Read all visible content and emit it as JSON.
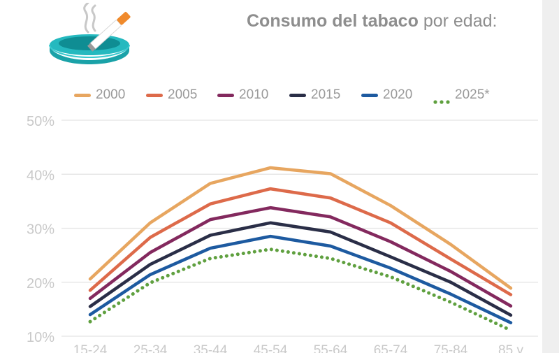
{
  "title": {
    "bold": "Consumo del tabaco",
    "light": "por edad:"
  },
  "icon": "ashtray-cigarette-icon",
  "chart_data": {
    "type": "line",
    "categories": [
      "15-24",
      "25-34",
      "35-44",
      "45-54",
      "55-64",
      "65-74",
      "75-84",
      "85 y"
    ],
    "ylim": [
      10,
      50
    ],
    "yticks": [
      "10%",
      "20%",
      "30%",
      "40%",
      "50%"
    ],
    "grid": true,
    "legend": "top",
    "series": [
      {
        "name": "2000",
        "color": "#e7a660",
        "dash": false,
        "values": [
          20.6,
          31.0,
          38.3,
          41.2,
          40.1,
          34.2,
          27.0,
          18.9
        ]
      },
      {
        "name": "2005",
        "color": "#dd6a4a",
        "dash": false,
        "values": [
          18.5,
          28.3,
          34.5,
          37.3,
          35.6,
          31.0,
          24.3,
          17.7
        ]
      },
      {
        "name": "2010",
        "color": "#83295e",
        "dash": false,
        "values": [
          17.0,
          25.5,
          31.6,
          33.8,
          32.1,
          27.5,
          22.0,
          15.6
        ]
      },
      {
        "name": "2015",
        "color": "#2a2e47",
        "dash": false,
        "values": [
          15.5,
          23.3,
          28.7,
          31.0,
          29.3,
          24.7,
          20.0,
          13.9
        ]
      },
      {
        "name": "2020",
        "color": "#1d5aa0",
        "dash": false,
        "values": [
          14.0,
          21.4,
          26.3,
          28.5,
          26.7,
          22.6,
          17.8,
          12.5
        ]
      },
      {
        "name": "2025*",
        "color": "#5fa03f",
        "dash": true,
        "values": [
          12.7,
          19.9,
          24.4,
          26.1,
          24.4,
          21.0,
          16.3,
          11.1
        ]
      }
    ]
  }
}
